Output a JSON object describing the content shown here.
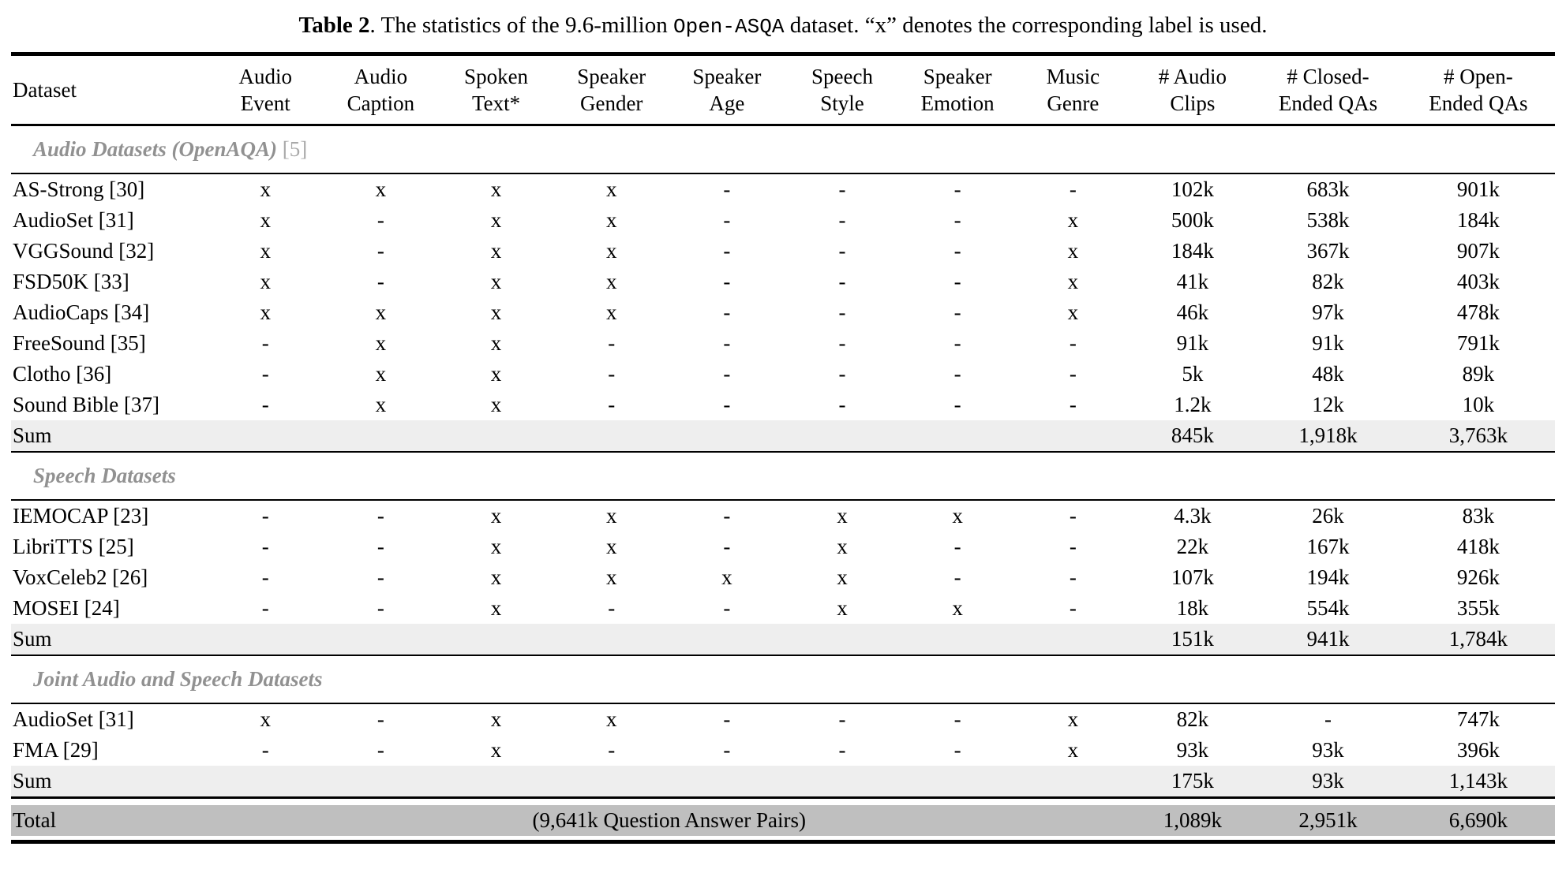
{
  "caption": {
    "label": "Table 2",
    "text_before_code": ". The statistics of the 9.6-million ",
    "code": "Open-ASQA",
    "text_after_code": " dataset. “x” denotes the corresponding label is used."
  },
  "columns": [
    {
      "line1": "Dataset",
      "line2": ""
    },
    {
      "line1": "Audio",
      "line2": "Event"
    },
    {
      "line1": "Audio",
      "line2": "Caption"
    },
    {
      "line1": "Spoken",
      "line2": "Text*"
    },
    {
      "line1": "Speaker",
      "line2": "Gender"
    },
    {
      "line1": "Speaker",
      "line2": "Age"
    },
    {
      "line1": "Speech",
      "line2": "Style"
    },
    {
      "line1": "Speaker",
      "line2": "Emotion"
    },
    {
      "line1": "Music",
      "line2": "Genre"
    },
    {
      "line1": "# Audio",
      "line2": "Clips"
    },
    {
      "line1": "# Closed-",
      "line2": "Ended QAs"
    },
    {
      "line1": "# Open-",
      "line2": "Ended QAs"
    }
  ],
  "sections": [
    {
      "title": "Audio Datasets (OpenAQA)",
      "ref": "[5]",
      "rows": [
        {
          "dataset": "AS-Strong [30]",
          "labels": [
            "x",
            "x",
            "x",
            "x",
            "-",
            "-",
            "-",
            "-"
          ],
          "clips": "102k",
          "closed": "683k",
          "open": "901k"
        },
        {
          "dataset": "AudioSet [31]",
          "labels": [
            "x",
            "-",
            "x",
            "x",
            "-",
            "-",
            "-",
            "x"
          ],
          "clips": "500k",
          "closed": "538k",
          "open": "184k"
        },
        {
          "dataset": "VGGSound [32]",
          "labels": [
            "x",
            "-",
            "x",
            "x",
            "-",
            "-",
            "-",
            "x"
          ],
          "clips": "184k",
          "closed": "367k",
          "open": "907k"
        },
        {
          "dataset": "FSD50K [33]",
          "labels": [
            "x",
            "-",
            "x",
            "x",
            "-",
            "-",
            "-",
            "x"
          ],
          "clips": "41k",
          "closed": "82k",
          "open": "403k"
        },
        {
          "dataset": "AudioCaps [34]",
          "labels": [
            "x",
            "x",
            "x",
            "x",
            "-",
            "-",
            "-",
            "x"
          ],
          "clips": "46k",
          "closed": "97k",
          "open": "478k"
        },
        {
          "dataset": "FreeSound [35]",
          "labels": [
            "-",
            "x",
            "x",
            "-",
            "-",
            "-",
            "-",
            "-"
          ],
          "clips": "91k",
          "closed": "91k",
          "open": "791k"
        },
        {
          "dataset": "Clotho [36]",
          "labels": [
            "-",
            "x",
            "x",
            "-",
            "-",
            "-",
            "-",
            "-"
          ],
          "clips": "5k",
          "closed": "48k",
          "open": "89k"
        },
        {
          "dataset": "Sound Bible [37]",
          "labels": [
            "-",
            "x",
            "x",
            "-",
            "-",
            "-",
            "-",
            "-"
          ],
          "clips": "1.2k",
          "closed": "12k",
          "open": "10k"
        }
      ],
      "sum": {
        "label": "Sum",
        "clips": "845k",
        "closed": "1,918k",
        "open": "3,763k"
      }
    },
    {
      "title": "Speech Datasets",
      "ref": "",
      "rows": [
        {
          "dataset": "IEMOCAP [23]",
          "labels": [
            "-",
            "-",
            "x",
            "x",
            "-",
            "x",
            "x",
            "-"
          ],
          "clips": "4.3k",
          "closed": "26k",
          "open": "83k"
        },
        {
          "dataset": "LibriTTS [25]",
          "labels": [
            "-",
            "-",
            "x",
            "x",
            "-",
            "x",
            "-",
            "-"
          ],
          "clips": "22k",
          "closed": "167k",
          "open": "418k"
        },
        {
          "dataset": "VoxCeleb2 [26]",
          "labels": [
            "-",
            "-",
            "x",
            "x",
            "x",
            "x",
            "-",
            "-"
          ],
          "clips": "107k",
          "closed": "194k",
          "open": "926k"
        },
        {
          "dataset": "MOSEI [24]",
          "labels": [
            "-",
            "-",
            "x",
            "-",
            "-",
            "x",
            "x",
            "-"
          ],
          "clips": "18k",
          "closed": "554k",
          "open": "355k"
        }
      ],
      "sum": {
        "label": "Sum",
        "clips": "151k",
        "closed": "941k",
        "open": "1,784k"
      }
    },
    {
      "title": "Joint Audio and Speech Datasets",
      "ref": "",
      "rows": [
        {
          "dataset": "AudioSet [31]",
          "labels": [
            "x",
            "-",
            "x",
            "x",
            "-",
            "-",
            "-",
            "x"
          ],
          "clips": "82k",
          "closed": "-",
          "open": "747k"
        },
        {
          "dataset": "FMA [29]",
          "labels": [
            "-",
            "-",
            "x",
            "-",
            "-",
            "-",
            "-",
            "x"
          ],
          "clips": "93k",
          "closed": "93k",
          "open": "396k"
        }
      ],
      "sum": {
        "label": "Sum",
        "clips": "175k",
        "closed": "93k",
        "open": "1,143k"
      }
    }
  ],
  "total": {
    "label": "Total",
    "note": "(9,641k Question Answer Pairs)",
    "clips": "1,089k",
    "closed": "2,951k",
    "open": "6,690k"
  },
  "colors": {
    "sum_row_bg": "#eeeeee",
    "total_row_bg": "#bfbfbf",
    "section_title": "#919191",
    "section_ref": "#a9a9a9"
  }
}
